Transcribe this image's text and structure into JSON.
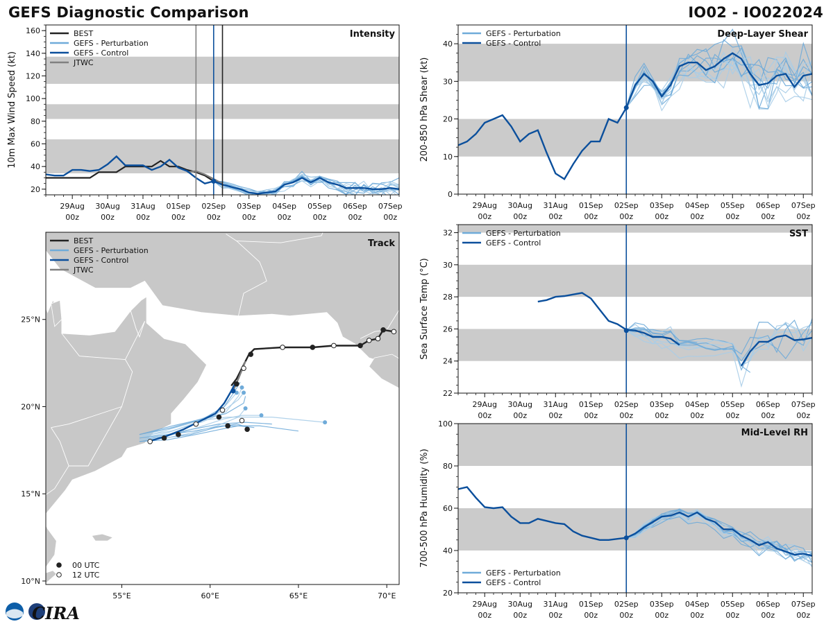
{
  "header": {
    "title": "GEFS Diagnostic Comparison",
    "storm": "IO02 - IO022024"
  },
  "colors": {
    "best": "#222222",
    "perturbation": "#6fabd9",
    "perturbation_light": "#a9cde8",
    "control": "#0b4f9c",
    "jtwc": "#808080",
    "band": "#cbcbcb",
    "land": "#c8c8c8"
  },
  "time_axis": {
    "ticks": [
      {
        "t": 1,
        "top": "29Aug",
        "bottom": "00z"
      },
      {
        "t": 2,
        "top": "30Aug",
        "bottom": "00z"
      },
      {
        "t": 3,
        "top": "31Aug",
        "bottom": "00z"
      },
      {
        "t": 4,
        "top": "01Sep",
        "bottom": "00z"
      },
      {
        "t": 5,
        "top": "02Sep",
        "bottom": "00z"
      },
      {
        "t": 6,
        "top": "03Sep",
        "bottom": "00z"
      },
      {
        "t": 7,
        "top": "04Sep",
        "bottom": "00z"
      },
      {
        "t": 8,
        "top": "05Sep",
        "bottom": "00z"
      },
      {
        "t": 9,
        "top": "06Sep",
        "bottom": "00z"
      },
      {
        "t": 10,
        "top": "07Sep",
        "bottom": "00z"
      }
    ],
    "range": [
      0.25,
      10.25
    ]
  },
  "chart_data": [
    {
      "id": "intensity",
      "type": "line",
      "title": "Intensity",
      "ylabel": "10m Max Wind Speed (kt)",
      "ylim": [
        15,
        165
      ],
      "yticks": [
        20,
        40,
        60,
        80,
        100,
        120,
        140,
        160
      ],
      "bands": [
        [
          34,
          64
        ],
        [
          82,
          95
        ],
        [
          113,
          137
        ]
      ],
      "vlines": [
        {
          "name": "jtwc-init",
          "t": 4.5,
          "color": "#808080"
        },
        {
          "name": "control-init",
          "t": 5.0,
          "color": "#0b4f9c"
        },
        {
          "name": "best-init",
          "t": 5.25,
          "color": "#222222"
        }
      ],
      "legend": [
        "BEST",
        "GEFS - Perturbation",
        "GEFS - Control",
        "JTWC"
      ],
      "best": {
        "t": [
          0.25,
          0.5,
          0.75,
          1,
          1.25,
          1.5,
          1.75,
          2,
          2.25,
          2.5,
          2.75,
          3,
          3.25,
          3.5,
          3.75,
          4,
          4.25,
          4.5,
          4.75,
          5,
          5.25
        ],
        "y": [
          30,
          30,
          30,
          30,
          30,
          30,
          35,
          35,
          35,
          40,
          40,
          40,
          40,
          45,
          40,
          40,
          37,
          35,
          32,
          27,
          25
        ]
      },
      "jtwc": {
        "t": [
          4.25,
          4.5,
          4.75,
          5,
          5.25
        ],
        "y": [
          35,
          36,
          33,
          29,
          25
        ]
      },
      "control": {
        "t": [
          0.25,
          0.5,
          0.75,
          1,
          1.25,
          1.5,
          1.75,
          2,
          2.25,
          2.5,
          2.75,
          3,
          3.25,
          3.5,
          3.75,
          4,
          4.25,
          4.5,
          4.75,
          5,
          5.25,
          5.5,
          5.75,
          6,
          6.25,
          6.5,
          6.75,
          7,
          7.25,
          7.5,
          7.75,
          8,
          8.25,
          8.5,
          8.75,
          9,
          9.25,
          9.5,
          9.75,
          10,
          10.25
        ],
        "y": [
          33,
          32,
          32,
          37,
          37,
          36,
          37,
          42,
          49,
          41,
          41,
          41,
          37,
          40,
          46,
          39,
          36,
          30,
          25,
          27,
          24,
          22,
          20,
          17,
          16,
          17,
          18,
          24,
          26,
          30,
          26,
          30,
          26,
          24,
          21,
          21,
          21,
          20,
          20,
          21,
          20
        ]
      },
      "perturbation_start": {
        "t": 5.0,
        "y": 27
      },
      "perturbation_count": 12,
      "perturbation_spread": 5
    },
    {
      "id": "shear",
      "type": "line",
      "title": "Deep-Layer Shear",
      "ylabel": "200-850 hPa Shear (kt)",
      "ylim": [
        0,
        45
      ],
      "yticks": [
        0,
        10,
        20,
        30,
        40
      ],
      "bands": [
        [
          10,
          20
        ],
        [
          30,
          40
        ]
      ],
      "vlines": [
        {
          "name": "control-init",
          "t": 5.0,
          "color": "#0b4f9c"
        }
      ],
      "legend": [
        "GEFS - Perturbation",
        "GEFS - Control"
      ],
      "control": {
        "t": [
          0.25,
          0.5,
          0.75,
          1,
          1.25,
          1.5,
          1.75,
          2,
          2.25,
          2.5,
          2.75,
          3,
          3.25,
          3.5,
          3.75,
          4,
          4.25,
          4.5,
          4.75,
          5,
          5.25,
          5.5,
          5.75,
          6,
          6.25,
          6.5,
          6.75,
          7,
          7.25,
          7.5,
          7.75,
          8,
          8.25,
          8.5,
          8.75,
          9,
          9.25,
          9.5,
          9.75,
          10,
          10.25
        ],
        "y": [
          13,
          14,
          16,
          19,
          20,
          21,
          18,
          14,
          16,
          17,
          11,
          5.5,
          4,
          8,
          11.5,
          14,
          14,
          20,
          19,
          23,
          29,
          32,
          30,
          26,
          29,
          34,
          35,
          35,
          33,
          34,
          36,
          37.5,
          36,
          32,
          29,
          29.5,
          31.5,
          32,
          28.5,
          31.5,
          32
        ]
      },
      "perturbation_start": {
        "t": 5.0,
        "y": 23
      },
      "perturbation_count": 12,
      "perturbation_spread": 5
    },
    {
      "id": "sst",
      "type": "line",
      "title": "SST",
      "ylabel": "Sea Surface Temp (°C)",
      "ylim": [
        22,
        32.5
      ],
      "yticks": [
        22,
        24,
        26,
        28,
        30,
        32
      ],
      "bands": [
        [
          24,
          26
        ],
        [
          28,
          30
        ],
        [
          32,
          34
        ]
      ],
      "vlines": [
        {
          "name": "control-init",
          "t": 5.0,
          "color": "#0b4f9c"
        }
      ],
      "legend": [
        "GEFS - Perturbation",
        "GEFS - Control"
      ],
      "control": {
        "t": [
          2.5,
          2.75,
          3,
          3.25,
          3.5,
          3.75,
          4,
          4.25,
          4.5,
          4.75,
          5,
          5.25,
          5.5,
          5.75,
          6,
          6.25,
          6.5,
          6.75,
          7,
          7.25,
          7.5,
          7.75,
          8,
          8.25,
          8.5,
          8.75,
          9,
          9.25,
          9.5,
          9.75,
          10,
          10.25
        ],
        "y": [
          27.7,
          27.8,
          28.0,
          28.05,
          28.15,
          28.25,
          27.9,
          27.2,
          26.5,
          26.3,
          25.95,
          25.9,
          25.75,
          25.5,
          25.5,
          25.4,
          25.0,
          null,
          null,
          null,
          null,
          null,
          null,
          23.7,
          24.6,
          25.2,
          25.2,
          25.5,
          25.6,
          25.3,
          25.35,
          25.45
        ]
      },
      "perturbation_start": {
        "t": 5.0,
        "y": 25.9
      },
      "perturbation_count": 10,
      "perturbation_spread": 0.9
    },
    {
      "id": "rh",
      "type": "line",
      "title": "Mid-Level RH",
      "ylabel": "700-500 hPa Humidity (%)",
      "ylim": [
        20,
        100
      ],
      "yticks": [
        20,
        40,
        60,
        80,
        100
      ],
      "bands": [
        [
          40,
          60
        ],
        [
          80,
          100
        ]
      ],
      "vlines": [
        {
          "name": "control-init",
          "t": 5.0,
          "color": "#0b4f9c"
        }
      ],
      "legend": [
        "GEFS - Perturbation",
        "GEFS - Control"
      ],
      "control": {
        "t": [
          0.25,
          0.5,
          0.75,
          1,
          1.25,
          1.5,
          1.75,
          2,
          2.25,
          2.5,
          2.75,
          3,
          3.25,
          3.5,
          3.75,
          4,
          4.25,
          4.5,
          4.75,
          5,
          5.25,
          5.5,
          5.75,
          6,
          6.25,
          6.5,
          6.75,
          7,
          7.25,
          7.5,
          7.75,
          8,
          8.25,
          8.5,
          8.75,
          9,
          9.25,
          9.5,
          9.75,
          10,
          10.25
        ],
        "y": [
          69,
          70,
          65,
          60.5,
          60,
          60.5,
          56,
          53,
          53,
          55,
          54,
          53,
          52.5,
          49,
          47,
          46,
          45,
          45,
          45.5,
          46,
          48,
          51,
          53.5,
          56,
          56.5,
          58,
          56,
          58,
          55,
          53.5,
          50,
          50,
          47,
          45,
          42.5,
          44,
          41,
          39.5,
          38,
          38.5,
          37.5
        ]
      },
      "perturbation_start": {
        "t": 5.0,
        "y": 46
      },
      "perturbation_count": 12,
      "perturbation_spread": 3
    }
  ],
  "track": {
    "title": "Track",
    "legend": [
      "BEST",
      "GEFS - Perturbation",
      "GEFS - Control",
      "JTWC"
    ],
    "utc_legend": [
      "00 UTC",
      "12 UTC"
    ],
    "lon_range": [
      50.7,
      70.7
    ],
    "lat_range": [
      9.8,
      30
    ],
    "xticks": [
      {
        "lon": 55,
        "label": "55°E"
      },
      {
        "lon": 60,
        "label": "60°E"
      },
      {
        "lon": 65,
        "label": "65°E"
      },
      {
        "lon": 70,
        "label": "70°E"
      }
    ],
    "yticks": [
      {
        "lat": 10,
        "label": "10°N"
      },
      {
        "lat": 15,
        "label": "15°N"
      },
      {
        "lat": 20,
        "label": "20°N"
      },
      {
        "lat": 25,
        "label": "25°N"
      }
    ],
    "best": [
      [
        70.4,
        24.3
      ],
      [
        69.8,
        24.4
      ],
      [
        69.5,
        23.9
      ],
      [
        69.0,
        23.8
      ],
      [
        68.5,
        23.5
      ],
      [
        67.0,
        23.5
      ],
      [
        65.8,
        23.4
      ],
      [
        64.1,
        23.4
      ],
      [
        62.5,
        23.3
      ],
      [
        62.2,
        23.0
      ],
      [
        62.0,
        22.6
      ],
      [
        61.8,
        22.2
      ],
      [
        61.5,
        21.6
      ],
      [
        61.2,
        21.2
      ]
    ],
    "best_points": [
      [
        70.4,
        24.3,
        "12"
      ],
      [
        69.8,
        24.4,
        "00"
      ],
      [
        69.5,
        23.9,
        "12"
      ],
      [
        69.0,
        23.8,
        "12"
      ],
      [
        68.5,
        23.5,
        "00"
      ],
      [
        67.0,
        23.5,
        "12"
      ],
      [
        65.8,
        23.4,
        "00"
      ],
      [
        64.1,
        23.4,
        "12"
      ],
      [
        62.3,
        23.0,
        "00"
      ],
      [
        61.9,
        22.2,
        "12"
      ],
      [
        61.5,
        21.3,
        "00"
      ]
    ],
    "jtwc": [
      [
        62.0,
        22.6
      ],
      [
        61.6,
        21.6
      ],
      [
        61.3,
        20.9
      ]
    ],
    "control": [
      [
        56.5,
        18.0
      ],
      [
        57.5,
        18.3
      ],
      [
        58.5,
        18.7
      ],
      [
        59.5,
        19.2
      ],
      [
        60.3,
        19.6
      ],
      [
        60.8,
        20.2
      ],
      [
        61.2,
        20.9
      ],
      [
        61.4,
        21.3
      ]
    ],
    "control_point": [
      61.3,
      20.9
    ],
    "other_points": [
      [
        56.6,
        18.0,
        "12"
      ],
      [
        57.4,
        18.2,
        "00"
      ],
      [
        58.2,
        18.4,
        "00"
      ],
      [
        59.2,
        19.0,
        "12"
      ],
      [
        60.5,
        19.4,
        "00"
      ],
      [
        60.7,
        19.8,
        "12"
      ],
      [
        61.8,
        19.2,
        "12"
      ],
      [
        61.0,
        18.9,
        "00"
      ],
      [
        62.1,
        18.7,
        "00"
      ]
    ],
    "perturbation_tracks": [
      [
        [
          56.0,
          18.2
        ],
        [
          57.6,
          18.5
        ],
        [
          59.0,
          19.0
        ],
        [
          60.3,
          19.5
        ],
        [
          61.0,
          20.2
        ],
        [
          61.5,
          20.8
        ]
      ],
      [
        [
          56.0,
          18.1
        ],
        [
          57.5,
          18.3
        ],
        [
          59.0,
          18.7
        ],
        [
          60.5,
          19.0
        ],
        [
          62.0,
          19.1
        ],
        [
          63.5,
          19.0
        ]
      ],
      [
        [
          56.0,
          18.3
        ],
        [
          57.8,
          18.8
        ],
        [
          59.5,
          19.3
        ],
        [
          60.8,
          19.8
        ],
        [
          61.6,
          20.4
        ],
        [
          61.9,
          20.8
        ]
      ],
      [
        [
          56.0,
          18.0
        ],
        [
          57.6,
          18.1
        ],
        [
          59.2,
          18.4
        ],
        [
          60.6,
          18.7
        ],
        [
          61.6,
          18.9
        ],
        [
          62.5,
          18.8
        ]
      ],
      [
        [
          56.0,
          18.2
        ],
        [
          57.7,
          18.7
        ],
        [
          59.4,
          19.2
        ],
        [
          61.0,
          19.4
        ],
        [
          63.5,
          19.4
        ],
        [
          66.5,
          19.1
        ]
      ],
      [
        [
          56.0,
          18.4
        ],
        [
          57.9,
          18.9
        ],
        [
          59.6,
          19.3
        ],
        [
          60.9,
          19.6
        ],
        [
          61.9,
          20.2
        ],
        [
          62.0,
          20.6
        ]
      ],
      [
        [
          56.0,
          18.1
        ],
        [
          57.6,
          18.4
        ],
        [
          59.3,
          18.8
        ],
        [
          60.8,
          19.3
        ],
        [
          61.8,
          19.5
        ],
        [
          62.9,
          19.5
        ]
      ],
      [
        [
          56.0,
          18.0
        ],
        [
          57.4,
          18.2
        ],
        [
          58.9,
          18.4
        ],
        [
          60.3,
          18.8
        ],
        [
          61.5,
          19.0
        ],
        [
          62.2,
          18.8
        ]
      ],
      [
        [
          56.0,
          18.3
        ],
        [
          57.8,
          18.6
        ],
        [
          59.5,
          19.1
        ],
        [
          60.9,
          19.7
        ],
        [
          61.6,
          20.6
        ],
        [
          61.8,
          21.1
        ]
      ],
      [
        [
          56.0,
          18.2
        ],
        [
          57.6,
          18.4
        ],
        [
          59.1,
          18.6
        ],
        [
          60.7,
          18.9
        ],
        [
          62.8,
          18.9
        ],
        [
          65.0,
          18.6
        ]
      ],
      [
        [
          56.0,
          18.1
        ],
        [
          57.5,
          18.2
        ],
        [
          59.0,
          18.5
        ],
        [
          60.4,
          18.9
        ],
        [
          61.6,
          19.4
        ],
        [
          62.0,
          19.9
        ]
      ],
      [
        [
          56.0,
          18.4
        ],
        [
          57.9,
          18.8
        ],
        [
          59.6,
          19.3
        ],
        [
          60.8,
          20.0
        ],
        [
          61.4,
          20.9
        ],
        [
          61.7,
          21.4
        ]
      ]
    ]
  },
  "logo": {
    "text": "CIRA",
    "seal": "CSU"
  }
}
